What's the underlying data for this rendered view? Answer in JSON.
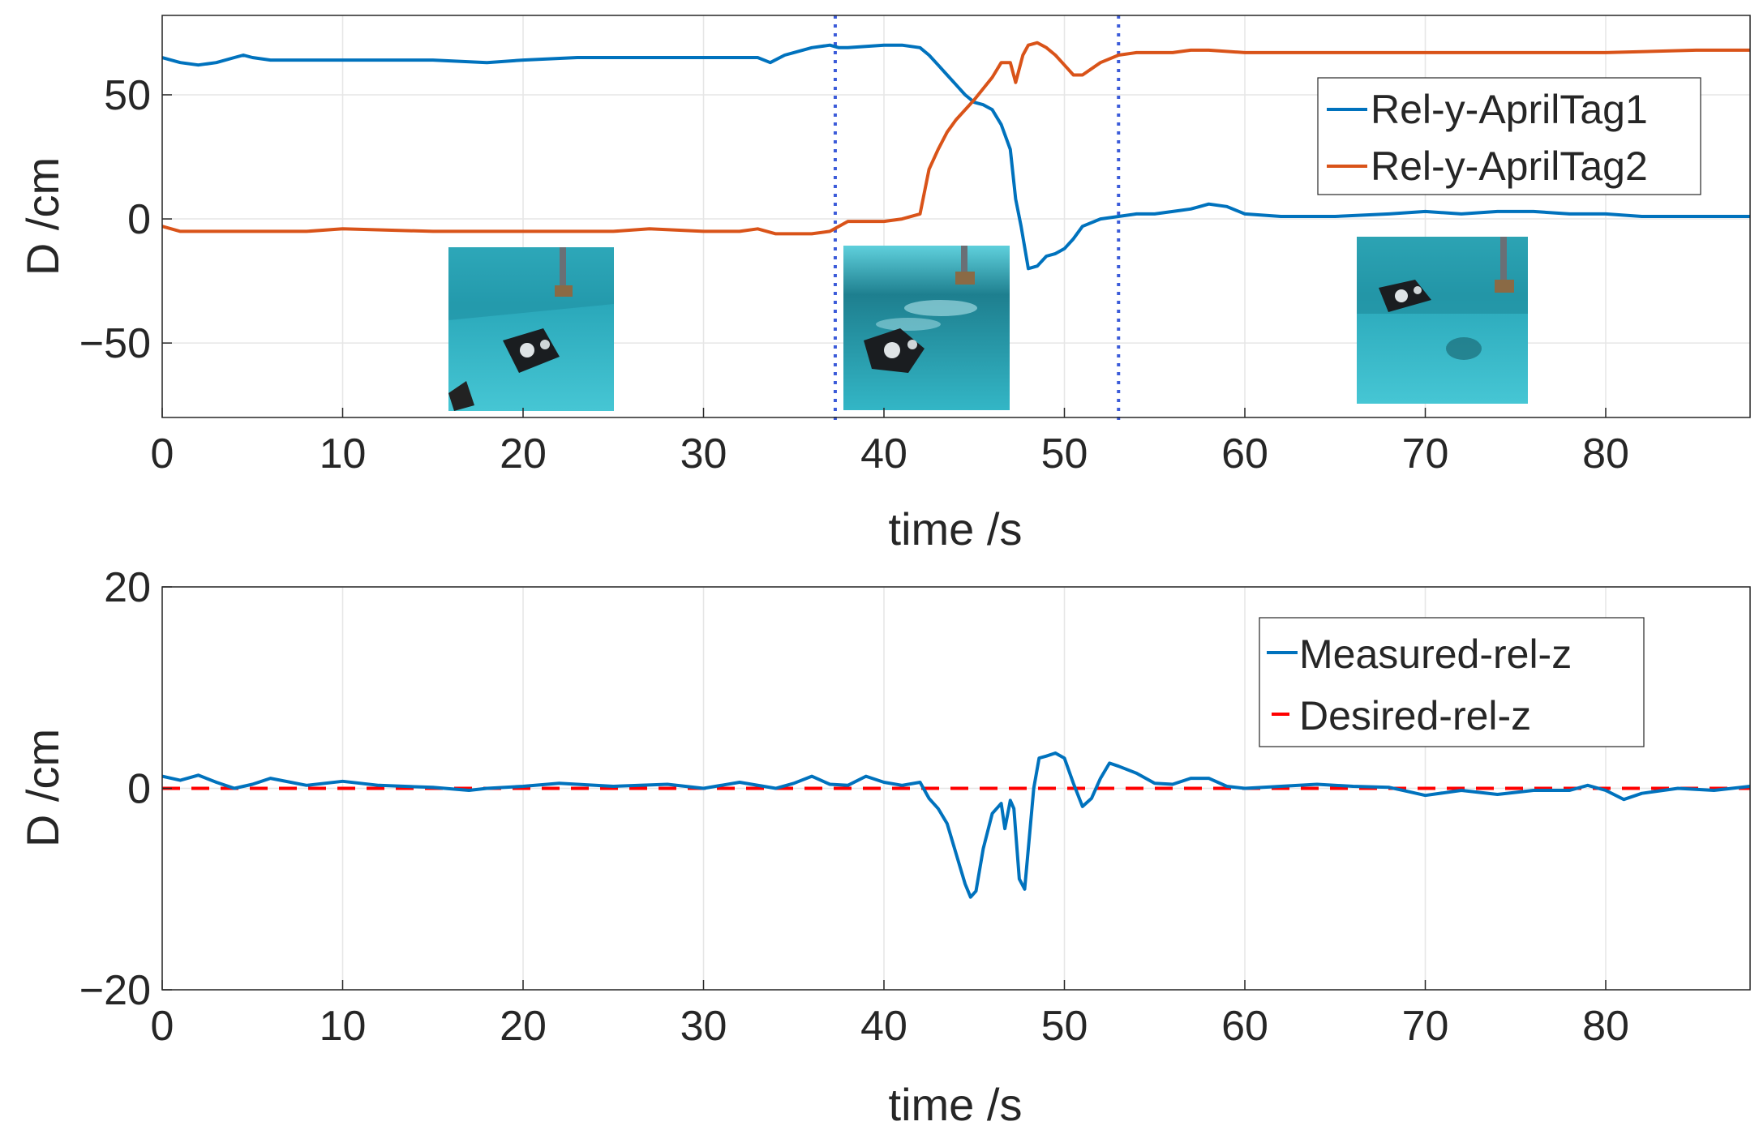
{
  "chart_data": [
    {
      "type": "line",
      "xlabel": "time /s",
      "ylabel": "D /cm",
      "xlim": [
        0,
        88
      ],
      "ylim": [
        -80,
        82
      ],
      "xticks": [
        0,
        10,
        20,
        30,
        40,
        50,
        60,
        70,
        80
      ],
      "yticks": [
        -50,
        0,
        50
      ],
      "ytick_labels": [
        "−50",
        "0",
        "50"
      ],
      "grid": true,
      "legend_position": "top-right",
      "vlines": [
        37.3,
        53.0
      ],
      "insets": 3,
      "series": [
        {
          "name": "Rel-y-AprilTag1",
          "color": "#0072BD",
          "x": [
            0,
            1,
            2,
            3,
            4,
            4.5,
            5,
            6,
            8,
            10,
            12,
            15,
            18,
            20,
            23,
            25,
            27,
            30,
            32,
            33,
            33.7,
            34.5,
            35,
            36,
            37,
            37.5,
            38,
            40,
            41,
            42,
            42.5,
            43,
            43.5,
            44,
            44.5,
            45,
            45.5,
            46,
            46.5,
            47,
            47.3,
            47.6,
            48,
            48.5,
            49,
            49.5,
            50,
            50.5,
            51,
            52,
            53,
            54,
            55,
            56,
            57,
            57.5,
            58,
            59,
            60,
            62,
            65,
            68,
            70,
            72,
            74,
            76,
            78,
            80,
            82,
            84,
            86,
            88
          ],
          "y": [
            65,
            63,
            62,
            63,
            65,
            66,
            65,
            64,
            64,
            64,
            64,
            64,
            63,
            64,
            65,
            65,
            65,
            65,
            65,
            65,
            63,
            66,
            67,
            69,
            70,
            69,
            69,
            70,
            70,
            69,
            66,
            62,
            58,
            54,
            50,
            47,
            46,
            44,
            38,
            28,
            8,
            -3,
            -20,
            -19,
            -15,
            -14,
            -12,
            -8,
            -3,
            0,
            1,
            2,
            2,
            3,
            4,
            5,
            6,
            5,
            2,
            1,
            1,
            2,
            3,
            2,
            3,
            3,
            2,
            2,
            1,
            1,
            1,
            1
          ]
        },
        {
          "name": "Rel-y-AprilTag2",
          "color": "#D95319",
          "x": [
            0,
            1,
            3,
            5,
            8,
            10,
            15,
            20,
            25,
            27,
            30,
            32,
            33,
            34,
            36,
            37,
            37.5,
            38,
            40,
            41,
            42,
            42.5,
            43,
            43.5,
            44,
            45,
            46,
            46.5,
            47,
            47.3,
            47.7,
            48,
            48.5,
            49,
            49.5,
            50,
            50.5,
            51,
            52,
            53,
            54,
            56,
            57,
            58,
            60,
            62,
            65,
            70,
            75,
            80,
            85,
            88
          ],
          "y": [
            -3,
            -5,
            -5,
            -5,
            -5,
            -4,
            -5,
            -5,
            -5,
            -4,
            -5,
            -5,
            -4,
            -6,
            -6,
            -5,
            -3,
            -1,
            -1,
            0,
            2,
            20,
            28,
            35,
            40,
            48,
            57,
            63,
            63,
            55,
            66,
            70,
            71,
            69,
            66,
            62,
            58,
            58,
            63,
            66,
            67,
            67,
            68,
            68,
            67,
            67,
            67,
            67,
            67,
            67,
            68,
            68
          ]
        }
      ]
    },
    {
      "type": "line",
      "xlabel": "time /s",
      "ylabel": "D /cm",
      "xlim": [
        0,
        88
      ],
      "ylim": [
        -20,
        20
      ],
      "xticks": [
        0,
        10,
        20,
        30,
        40,
        50,
        60,
        70,
        80
      ],
      "yticks": [
        -20,
        0,
        20
      ],
      "ytick_labels": [
        "−20",
        "0",
        "20"
      ],
      "grid": true,
      "legend_position": "top-right",
      "series": [
        {
          "name": "Measured-rel-z",
          "color": "#0072BD",
          "x": [
            0,
            1,
            2,
            3,
            4,
            5,
            6,
            8,
            10,
            12,
            15,
            17,
            18,
            20,
            22,
            25,
            28,
            30,
            32,
            34,
            35,
            36,
            37,
            38,
            39,
            40,
            41,
            42,
            42.5,
            43,
            43.5,
            44,
            44.5,
            44.8,
            45.1,
            45.5,
            46,
            46.5,
            46.7,
            47,
            47.2,
            47.5,
            47.8,
            48,
            48.3,
            48.6,
            49,
            49.5,
            50,
            50.5,
            51,
            51.5,
            52,
            52.5,
            53,
            54,
            55,
            56,
            57,
            58,
            59,
            60,
            62,
            64,
            66,
            68,
            69,
            70,
            72,
            74,
            76,
            78,
            79,
            80,
            81,
            82,
            84,
            86,
            88
          ],
          "y": [
            1.2,
            0.8,
            1.3,
            0.6,
            0.0,
            0.4,
            1.0,
            0.3,
            0.7,
            0.3,
            0.1,
            -0.2,
            0.0,
            0.2,
            0.5,
            0.2,
            0.4,
            0.0,
            0.6,
            0.0,
            0.5,
            1.2,
            0.4,
            0.3,
            1.2,
            0.6,
            0.3,
            0.6,
            -1.0,
            -2.0,
            -3.5,
            -6.5,
            -9.5,
            -10.8,
            -10.2,
            -6.0,
            -2.5,
            -1.5,
            -4.0,
            -1.2,
            -2.0,
            -9.0,
            -10.0,
            -6.0,
            0.0,
            3.0,
            3.2,
            3.5,
            3.0,
            0.5,
            -1.8,
            -1.0,
            1.0,
            2.5,
            2.2,
            1.5,
            0.5,
            0.4,
            1.0,
            1.0,
            0.2,
            0.0,
            0.2,
            0.4,
            0.2,
            0.1,
            -0.3,
            -0.7,
            -0.2,
            -0.6,
            -0.2,
            -0.2,
            0.3,
            -0.2,
            -1.1,
            -0.5,
            0.0,
            -0.2,
            0.2
          ]
        },
        {
          "name": "Desired-rel-z",
          "color": "#FF0000",
          "x": [
            0,
            88
          ],
          "y": [
            0,
            0
          ]
        }
      ]
    }
  ]
}
